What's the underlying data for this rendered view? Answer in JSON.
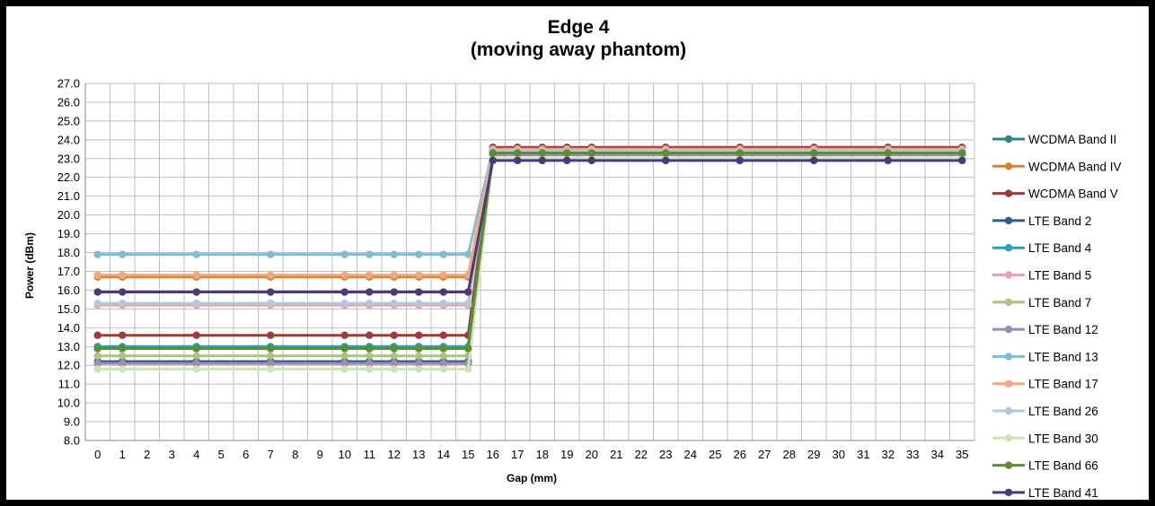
{
  "chart_data": {
    "type": "line",
    "title": "Edge 4",
    "subtitle": "(moving away phantom)",
    "xlabel": "Gap (mm)",
    "ylabel": "Power (dBm)",
    "ylim": [
      8.0,
      27.0
    ],
    "y_ticks": [
      "8.0",
      "9.0",
      "10.0",
      "11.0",
      "12.0",
      "13.0",
      "14.0",
      "15.0",
      "16.0",
      "17.0",
      "18.0",
      "19.0",
      "20.0",
      "21.0",
      "22.0",
      "23.0",
      "24.0",
      "25.0",
      "26.0",
      "27.0"
    ],
    "categories": [
      "0",
      "1",
      "2",
      "3",
      "4",
      "5",
      "6",
      "7",
      "8",
      "9",
      "10",
      "11",
      "12",
      "13",
      "14",
      "15",
      "16",
      "17",
      "18",
      "19",
      "20",
      "21",
      "22",
      "23",
      "24",
      "25",
      "26",
      "27",
      "28",
      "29",
      "30",
      "31",
      "32",
      "33",
      "34",
      "35"
    ],
    "x": [
      "0",
      "1",
      "4",
      "7",
      "10",
      "11",
      "12",
      "13",
      "14",
      "15",
      "16",
      "17",
      "18",
      "19",
      "20",
      "23",
      "26",
      "29",
      "32",
      "35"
    ],
    "grid": true,
    "legend_position": "right",
    "series": [
      {
        "name": "WCDMA Band II",
        "color": "#2E7F8C",
        "values": [
          12.9,
          12.9,
          12.9,
          12.9,
          12.9,
          12.9,
          12.9,
          12.9,
          12.9,
          12.9,
          23.4,
          23.4,
          23.4,
          23.4,
          23.4,
          23.4,
          23.4,
          23.4,
          23.4,
          23.4
        ]
      },
      {
        "name": "WCDMA Band IV",
        "color": "#D9822B",
        "values": [
          16.7,
          16.7,
          16.7,
          16.7,
          16.7,
          16.7,
          16.7,
          16.7,
          16.7,
          16.7,
          23.5,
          23.5,
          23.5,
          23.5,
          23.5,
          23.5,
          23.5,
          23.5,
          23.5,
          23.5
        ]
      },
      {
        "name": "WCDMA Band V",
        "color": "#9C3B3B",
        "values": [
          13.6,
          13.6,
          13.6,
          13.6,
          13.6,
          13.6,
          13.6,
          13.6,
          13.6,
          13.6,
          23.6,
          23.6,
          23.6,
          23.6,
          23.6,
          23.6,
          23.6,
          23.6,
          23.6,
          23.6
        ]
      },
      {
        "name": "LTE Band 2",
        "color": "#2F5C8A",
        "values": [
          12.2,
          12.2,
          12.2,
          12.2,
          12.2,
          12.2,
          12.2,
          12.2,
          12.2,
          12.2,
          23.2,
          23.2,
          23.2,
          23.2,
          23.2,
          23.2,
          23.2,
          23.2,
          23.2,
          23.2
        ]
      },
      {
        "name": "LTE Band 4",
        "color": "#2BA0BE",
        "values": [
          13.0,
          13.0,
          13.0,
          13.0,
          13.0,
          13.0,
          13.0,
          13.0,
          13.0,
          13.0,
          23.3,
          23.3,
          23.3,
          23.3,
          23.3,
          23.3,
          23.3,
          23.3,
          23.3,
          23.3
        ]
      },
      {
        "name": "LTE Band 5",
        "color": "#E4A6A6",
        "values": [
          15.2,
          15.2,
          15.2,
          15.2,
          15.2,
          15.2,
          15.2,
          15.2,
          15.2,
          15.2,
          23.4,
          23.4,
          23.4,
          23.4,
          23.4,
          23.4,
          23.4,
          23.4,
          23.4,
          23.4
        ]
      },
      {
        "name": "LTE Band 7",
        "color": "#A9C47F",
        "values": [
          12.5,
          12.5,
          12.5,
          12.5,
          12.5,
          12.5,
          12.5,
          12.5,
          12.5,
          12.5,
          23.3,
          23.3,
          23.3,
          23.3,
          23.3,
          23.3,
          23.3,
          23.3,
          23.3,
          23.3
        ]
      },
      {
        "name": "LTE Band 12",
        "color": "#9B8BB5",
        "values": [
          12.1,
          12.1,
          12.1,
          12.1,
          12.1,
          12.1,
          12.1,
          12.1,
          12.1,
          12.1,
          23.2,
          23.2,
          23.2,
          23.2,
          23.2,
          23.2,
          23.2,
          23.2,
          23.2,
          23.2
        ]
      },
      {
        "name": "LTE Band 13",
        "color": "#7FBCD8",
        "values": [
          17.9,
          17.9,
          17.9,
          17.9,
          17.9,
          17.9,
          17.9,
          17.9,
          17.9,
          17.9,
          23.5,
          23.5,
          23.5,
          23.5,
          23.5,
          23.5,
          23.5,
          23.5,
          23.5,
          23.5
        ]
      },
      {
        "name": "LTE Band 17",
        "color": "#F4A77C",
        "values": [
          16.8,
          16.8,
          16.8,
          16.8,
          16.8,
          16.8,
          16.8,
          16.8,
          16.8,
          16.8,
          23.5,
          23.5,
          23.5,
          23.5,
          23.5,
          23.5,
          23.5,
          23.5,
          23.5,
          23.5
        ]
      },
      {
        "name": "LTE Band 26",
        "color": "#B3C7E0",
        "values": [
          15.3,
          15.3,
          15.3,
          15.3,
          15.3,
          15.3,
          15.3,
          15.3,
          15.3,
          15.3,
          23.4,
          23.4,
          23.4,
          23.4,
          23.4,
          23.4,
          23.4,
          23.4,
          23.4,
          23.4
        ]
      },
      {
        "name": "LTE Band 30",
        "color": "#CFE3B8",
        "values": [
          11.8,
          11.8,
          11.8,
          11.8,
          11.8,
          11.8,
          11.8,
          11.8,
          11.8,
          11.8,
          23.0,
          23.0,
          23.0,
          23.0,
          23.0,
          23.0,
          23.0,
          23.0,
          23.0,
          23.0
        ]
      },
      {
        "name": "LTE Band 66",
        "color": "#5E8C31",
        "values": [
          12.9,
          12.9,
          12.9,
          12.9,
          12.9,
          12.9,
          12.9,
          12.9,
          12.9,
          12.9,
          23.3,
          23.3,
          23.3,
          23.3,
          23.3,
          23.3,
          23.3,
          23.3,
          23.3,
          23.3
        ]
      },
      {
        "name": "LTE Band 41",
        "color": "#4B3A78",
        "values": [
          15.9,
          15.9,
          15.9,
          15.9,
          15.9,
          15.9,
          15.9,
          15.9,
          15.9,
          15.9,
          22.9,
          22.9,
          22.9,
          22.9,
          22.9,
          22.9,
          22.9,
          22.9,
          22.9,
          22.9
        ]
      }
    ]
  }
}
